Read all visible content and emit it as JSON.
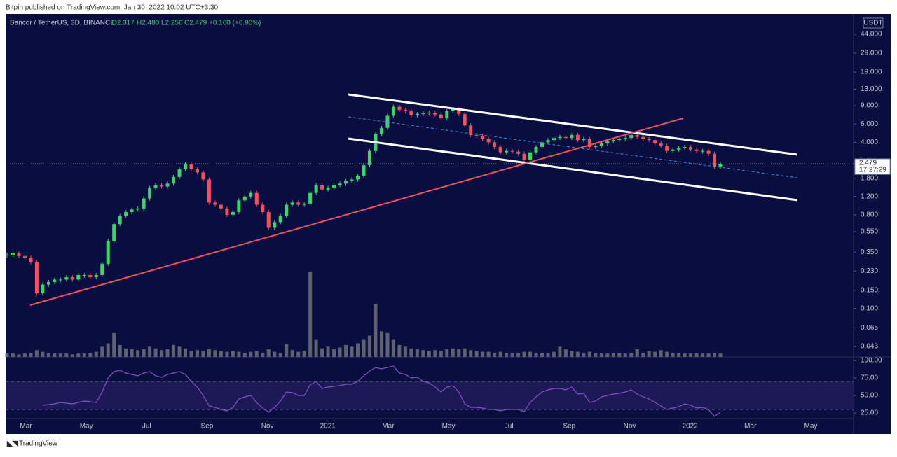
{
  "header": {
    "publisher": "Bitpin published on TradingView.com, Jan 30, 2022 10:02 UTC+3:30",
    "logo": "TradingView"
  },
  "chart_data": {
    "type": "candlestick",
    "title": "Bancor / TetherUS, 3D, BINANCE",
    "ohlc": {
      "open": "O2.317",
      "high": "H2.480",
      "low": "L2.256",
      "close": "C2.479",
      "change": "+0.160 (+6.90%)"
    },
    "unit": "USDT",
    "countdown": "17:27:29",
    "log_scale": true,
    "up_color": "#3fd370",
    "down_color": "#f0525f",
    "values": [
      0.33,
      0.34,
      0.32,
      0.31,
      0.28,
      0.14,
      0.17,
      0.18,
      0.19,
      0.19,
      0.2,
      0.19,
      0.21,
      0.21,
      0.2,
      0.21,
      0.27,
      0.45,
      0.65,
      0.78,
      0.85,
      0.9,
      0.92,
      1.15,
      1.45,
      1.55,
      1.5,
      1.6,
      1.85,
      2.2,
      2.45,
      2.2,
      2.05,
      1.75,
      1.05,
      1.0,
      0.92,
      0.8,
      0.85,
      1.1,
      1.2,
      1.3,
      1.0,
      0.85,
      0.6,
      0.68,
      0.78,
      1.0,
      1.05,
      1.0,
      1.02,
      1.3,
      1.55,
      1.4,
      1.45,
      1.55,
      1.6,
      1.7,
      1.75,
      1.9,
      2.4,
      3.3,
      4.8,
      5.5,
      7.2,
      8.8,
      8.2,
      8.0,
      7.3,
      7.5,
      7.6,
      7.7,
      7.4,
      6.8,
      8.0,
      8.3,
      7.5,
      5.8,
      4.7,
      4.6,
      4.3,
      4.0,
      3.6,
      3.2,
      3.3,
      3.25,
      3.1,
      2.7,
      3.2,
      3.6,
      4.0,
      4.2,
      4.4,
      4.5,
      4.4,
      4.7,
      4.2,
      4.3,
      3.6,
      3.7,
      3.9,
      4.1,
      4.2,
      4.3,
      4.4,
      4.7,
      4.5,
      4.3,
      4.2,
      3.9,
      3.7,
      3.3,
      3.4,
      3.5,
      3.6,
      3.4,
      3.3,
      3.3,
      3.1,
      2.32,
      2.479
    ],
    "ylim": [
      0.0341,
      69
    ],
    "yticks": [
      {
        "value": 44,
        "label": "44.000"
      },
      {
        "value": 29,
        "label": "29.000"
      },
      {
        "value": 19,
        "label": "19.000"
      },
      {
        "value": 13,
        "label": "13.000"
      },
      {
        "value": 9,
        "label": "9.000"
      },
      {
        "value": 6,
        "label": "6.000"
      },
      {
        "value": 4,
        "label": "4.000"
      },
      {
        "value": 1.8,
        "label": "1.800"
      },
      {
        "value": 1.2,
        "label": "1.200"
      },
      {
        "value": 0.8,
        "label": "0.800"
      },
      {
        "value": 0.55,
        "label": "0.550"
      },
      {
        "value": 0.35,
        "label": "0.350"
      },
      {
        "value": 0.23,
        "label": "0.230"
      },
      {
        "value": 0.15,
        "label": "0.150"
      },
      {
        "value": 0.1,
        "label": "0.100"
      },
      {
        "value": 0.065,
        "label": "0.065"
      },
      {
        "value": 0.043,
        "label": "0.043"
      }
    ],
    "xtick_labels": [
      "Mar",
      "May",
      "Jul",
      "Sep",
      "Nov",
      "2021",
      "Mar",
      "May",
      "Jul",
      "Sep",
      "Nov",
      "2022",
      "Mar",
      "May"
    ],
    "volume": {
      "color": "#5f6270",
      "values": [
        4,
        4,
        3,
        4,
        5,
        8,
        6,
        5,
        4,
        4,
        4,
        3,
        4,
        4,
        5,
        6,
        12,
        16,
        28,
        14,
        10,
        9,
        8,
        9,
        12,
        10,
        8,
        9,
        14,
        12,
        10,
        7,
        8,
        7,
        9,
        8,
        7,
        6,
        7,
        6,
        5,
        6,
        7,
        5,
        9,
        6,
        5,
        15,
        8,
        6,
        7,
        100,
        20,
        10,
        12,
        9,
        11,
        14,
        12,
        16,
        20,
        25,
        62,
        30,
        28,
        20,
        14,
        12,
        10,
        9,
        8,
        7,
        8,
        7,
        9,
        10,
        9,
        10,
        8,
        7,
        6,
        6,
        5,
        6,
        5,
        5,
        5,
        6,
        6,
        5,
        5,
        5,
        6,
        12,
        9,
        7,
        6,
        5,
        6,
        5,
        4,
        4,
        5,
        5,
        4,
        5,
        9,
        5,
        7,
        6,
        8,
        6,
        5,
        5,
        4,
        4,
        4,
        4,
        4,
        5,
        4
      ]
    },
    "rsi": {
      "color": "#7e57c2",
      "ylim": [
        17,
        105
      ],
      "band": [
        30,
        70
      ],
      "yticks": [
        {
          "value": 100,
          "label": "100.00"
        },
        {
          "value": 75,
          "label": "75.00"
        },
        {
          "value": 50,
          "label": "50.00"
        },
        {
          "value": 25,
          "label": "25.00"
        }
      ],
      "values": [
        null,
        null,
        null,
        null,
        null,
        null,
        36,
        37,
        38,
        40,
        39,
        38,
        40,
        42,
        41,
        40,
        55,
        75,
        84,
        86,
        82,
        80,
        78,
        82,
        84,
        78,
        76,
        80,
        82,
        84,
        80,
        70,
        62,
        50,
        35,
        33,
        30,
        28,
        33,
        45,
        48,
        50,
        40,
        32,
        26,
        33,
        42,
        55,
        54,
        50,
        50,
        65,
        70,
        60,
        62,
        63,
        64,
        66,
        66,
        70,
        78,
        85,
        90,
        88,
        90,
        92,
        82,
        80,
        75,
        76,
        70,
        68,
        62,
        55,
        62,
        64,
        55,
        38,
        33,
        33,
        32,
        30,
        30,
        28,
        30,
        30,
        30,
        27,
        40,
        48,
        55,
        58,
        60,
        60,
        58,
        62,
        52,
        53,
        40,
        42,
        48,
        50,
        52,
        53,
        55,
        58,
        52,
        48,
        45,
        40,
        35,
        30,
        32,
        34,
        38,
        36,
        32,
        33,
        30,
        20,
        26
      ]
    }
  }
}
